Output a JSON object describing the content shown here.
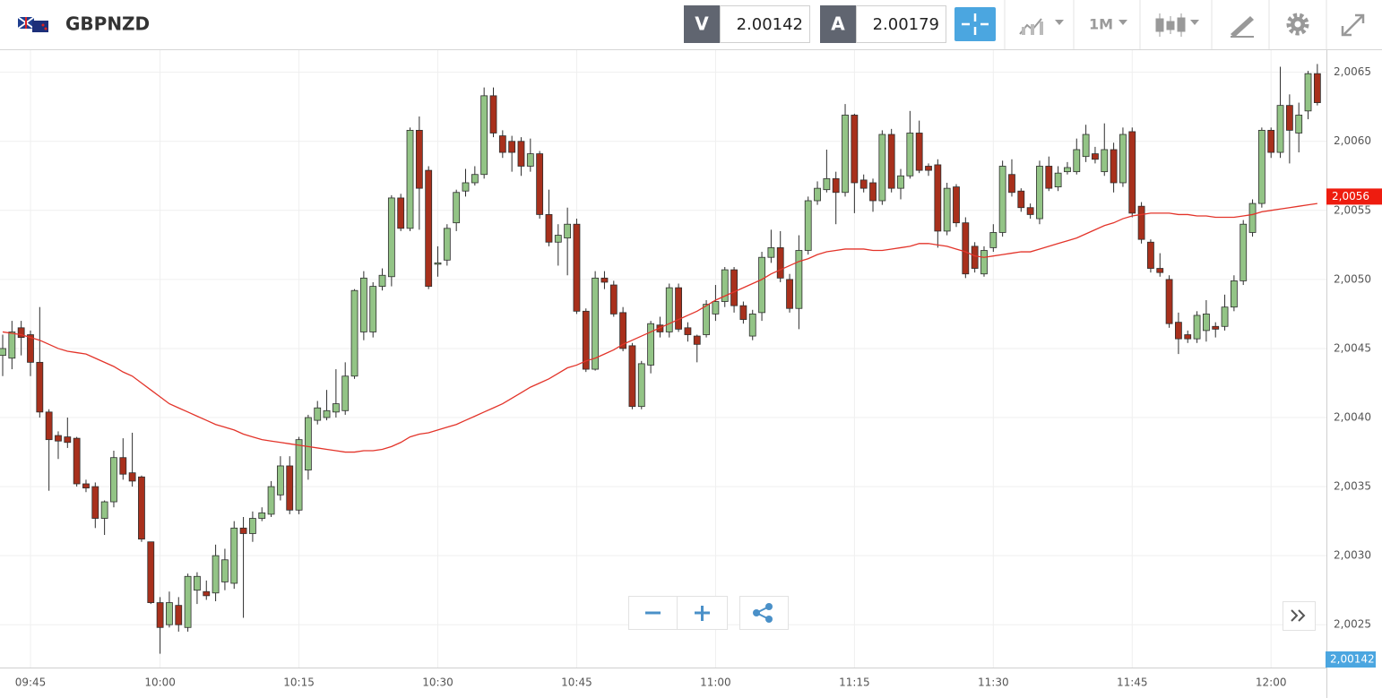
{
  "header": {
    "symbol": "GBPNZD",
    "bid_tag": "V",
    "bid": "2.00142",
    "ask_tag": "A",
    "ask": "2.00179",
    "timeframe": "1M"
  },
  "chart_data": {
    "type": "candlestick",
    "categories": [
      null,
      null,
      null,
      "09:45",
      null,
      null,
      null,
      null,
      null,
      null,
      null,
      null,
      null,
      null,
      null,
      null,
      null,
      "10:00",
      null,
      null,
      null,
      null,
      null,
      null,
      null,
      null,
      null,
      null,
      null,
      null,
      null,
      null,
      "10:15",
      null,
      null,
      null,
      null,
      null,
      null,
      null,
      null,
      null,
      null,
      null,
      null,
      null,
      null,
      "10:30",
      null,
      null,
      null,
      null,
      null,
      null,
      null,
      null,
      null,
      null,
      null,
      null,
      null,
      null,
      "10:45",
      null,
      null,
      null,
      null,
      null,
      null,
      null,
      null,
      null,
      null,
      null,
      null,
      null,
      null,
      "11:00",
      null,
      null,
      null,
      null,
      null,
      null,
      null,
      null,
      null,
      null,
      null,
      null,
      null,
      null,
      "11:15",
      null,
      null,
      null,
      null,
      null,
      null,
      null,
      null,
      null,
      null,
      null,
      null,
      null,
      null,
      "11:30",
      null,
      null,
      null,
      null,
      null,
      null,
      null,
      null,
      null,
      null,
      null,
      null,
      null,
      null,
      "11:45",
      null,
      null,
      null,
      null,
      null,
      null,
      null,
      null,
      null,
      null,
      null,
      null,
      null,
      null,
      "12:00",
      null,
      null,
      null,
      null,
      null
    ],
    "candles": {
      "up_color": "#93c486",
      "down_color": "#a8301c",
      "edge_color": "#2d2d2d",
      "open": [
        2.00445,
        2.00443,
        2.00465,
        2.0046,
        2.0044,
        2.00404,
        2.00387,
        2.00386,
        2.00385,
        2.00352,
        2.0035,
        2.00327,
        2.00339,
        2.00371,
        2.0036,
        2.00357,
        2.0031,
        2.00266,
        2.0025,
        2.00264,
        2.00248,
        2.00275,
        2.00274,
        2.00273,
        2.00281,
        2.0028,
        2.0032,
        2.00316,
        2.00327,
        2.0033,
        2.00344,
        2.00365,
        2.00333,
        2.00362,
        2.00398,
        2.004,
        2.00404,
        2.00405,
        2.0043,
        2.00462,
        2.00462,
        2.00495,
        2.00502,
        2.00559,
        2.00537,
        2.00608,
        2.00579,
        2.00511,
        2.00514,
        2.00541,
        2.00564,
        2.0057,
        2.00576,
        2.00633,
        2.00604,
        2.006,
        2.006,
        2.00582,
        2.00591,
        2.00547,
        2.00527,
        2.0053,
        2.0054,
        2.00477,
        2.00435,
        2.00501,
        2.00496,
        2.00476,
        2.00452,
        2.00408,
        2.00438,
        2.00467,
        2.00462,
        2.00494,
        2.00465,
        2.00459,
        2.0046,
        2.00475,
        2.00484,
        2.00507,
        2.00481,
        2.00459,
        2.00476,
        2.00516,
        2.00523,
        2.005,
        2.00479,
        2.00521,
        2.00557,
        2.00565,
        2.00573,
        2.00563,
        2.00619,
        2.00572,
        2.0057,
        2.00557,
        2.00605,
        2.00566,
        2.00575,
        2.00606,
        2.00582,
        2.00583,
        2.00535,
        2.00567,
        2.00541,
        2.00524,
        2.00504,
        2.00523,
        2.00534,
        2.00576,
        2.00564,
        2.00552,
        2.00544,
        2.00582,
        2.00567,
        2.00578,
        2.00578,
        2.00589,
        2.00591,
        2.00578,
        2.00594,
        2.0057,
        2.00607,
        2.00553,
        2.00527,
        2.00508,
        2.005,
        2.00469,
        2.0046,
        2.00457,
        2.00463,
        2.00466,
        2.00466,
        2.0048,
        2.00499,
        2.00534,
        2.00555,
        2.00608,
        2.00592,
        2.00626,
        2.00606,
        2.00622,
        2.00649
      ],
      "high": [
        2.0046,
        2.0047,
        2.0047,
        2.00463,
        2.0048,
        2.00406,
        2.0039,
        2.004,
        2.00386,
        2.00355,
        2.00353,
        2.0034,
        2.00376,
        2.00385,
        2.00389,
        2.00358,
        2.0031,
        2.0027,
        2.00274,
        2.0027,
        2.00287,
        2.00288,
        2.00282,
        2.00308,
        2.00305,
        2.00325,
        2.00328,
        2.00332,
        2.00335,
        2.00354,
        2.00372,
        2.00372,
        2.00386,
        2.00402,
        2.00412,
        2.0042,
        2.00435,
        2.0044,
        2.00493,
        2.00506,
        2.00498,
        2.00508,
        2.00561,
        2.00562,
        2.0061,
        2.00618,
        2.00582,
        2.00524,
        2.0054,
        2.00565,
        2.0058,
        2.00582,
        2.00639,
        2.00639,
        2.00608,
        2.00604,
        2.00603,
        2.00602,
        2.00593,
        2.00565,
        2.0054,
        2.00552,
        2.00544,
        2.00479,
        2.00506,
        2.00506,
        2.00499,
        2.0048,
        2.00454,
        2.00441,
        2.0047,
        2.00473,
        2.00497,
        2.00497,
        2.00469,
        2.0046,
        2.00485,
        2.00496,
        2.00509,
        2.00509,
        2.00484,
        2.00478,
        2.0052,
        2.00536,
        2.00535,
        2.00504,
        2.00532,
        2.0056,
        2.00571,
        2.00594,
        2.00578,
        2.00627,
        2.0062,
        2.00576,
        2.00573,
        2.00608,
        2.00609,
        2.0058,
        2.00622,
        2.00615,
        2.00584,
        2.00587,
        2.0057,
        2.00569,
        2.00545,
        2.00527,
        2.00524,
        2.0054,
        2.00586,
        2.00587,
        2.00566,
        2.00555,
        2.00586,
        2.00589,
        2.00582,
        2.00585,
        2.00602,
        2.00612,
        2.00596,
        2.00613,
        2.00599,
        2.0061,
        2.0061,
        2.00556,
        2.00529,
        2.00519,
        2.00503,
        2.00476,
        2.00463,
        2.00477,
        2.00485,
        2.00469,
        2.00489,
        2.00503,
        2.00543,
        2.00558,
        2.0061,
        2.0061,
        2.00654,
        2.00634,
        2.00628,
        2.00651,
        2.00656
      ],
      "low": [
        2.0043,
        2.00435,
        2.00445,
        2.0043,
        2.004,
        2.00347,
        2.0037,
        2.00378,
        2.0035,
        2.00346,
        2.0032,
        2.00315,
        2.00335,
        2.00355,
        2.0035,
        2.0031,
        2.00265,
        2.00229,
        2.00248,
        2.00245,
        2.00245,
        2.00265,
        2.00268,
        2.00267,
        2.00275,
        2.00276,
        2.00255,
        2.0031,
        2.00325,
        2.00328,
        2.0034,
        2.0033,
        2.0033,
        2.00355,
        2.00395,
        2.00398,
        2.004,
        2.00402,
        2.00428,
        2.00456,
        2.00458,
        2.00492,
        2.00495,
        2.00535,
        2.00535,
        2.00536,
        2.00493,
        2.00502,
        2.0051,
        2.00535,
        2.0056,
        2.00568,
        2.00573,
        2.00603,
        2.00588,
        2.00578,
        2.00575,
        2.00578,
        2.00544,
        2.00524,
        2.0051,
        2.00503,
        2.00475,
        2.00433,
        2.00434,
        2.00493,
        2.00473,
        2.00448,
        2.00406,
        2.00406,
        2.00432,
        2.00458,
        2.00458,
        2.00462,
        2.00455,
        2.0044,
        2.00458,
        2.0047,
        2.0048,
        2.00476,
        2.00468,
        2.00456,
        2.0047,
        2.00512,
        2.00498,
        2.00476,
        2.00464,
        2.00518,
        2.00554,
        2.00563,
        2.0054,
        2.0056,
        2.00548,
        2.00563,
        2.00549,
        2.00554,
        2.00563,
        2.00558,
        2.00573,
        2.00577,
        2.00575,
        2.00523,
        2.00532,
        2.00538,
        2.00501,
        2.00505,
        2.00502,
        2.0052,
        2.00531,
        2.0056,
        2.00549,
        2.00544,
        2.0054,
        2.00564,
        2.00564,
        2.00576,
        2.00576,
        2.00585,
        2.00584,
        2.00575,
        2.00563,
        2.00567,
        2.00545,
        2.00526,
        2.00505,
        2.00502,
        2.00465,
        2.00446,
        2.00454,
        2.00454,
        2.00455,
        2.00458,
        2.00463,
        2.00477,
        2.00496,
        2.00531,
        2.00552,
        2.00588,
        2.00588,
        2.00584,
        2.00592,
        2.00616,
        2.00626
      ],
      "close": [
        2.0045,
        2.00462,
        2.00458,
        2.0044,
        2.00404,
        2.00384,
        2.00383,
        2.00382,
        2.00352,
        2.00349,
        2.00327,
        2.00339,
        2.00371,
        2.00359,
        2.00354,
        2.00312,
        2.00266,
        2.00248,
        2.00266,
        2.0025,
        2.00285,
        2.00285,
        2.00271,
        2.003,
        2.00297,
        2.0032,
        2.00316,
        2.00327,
        2.00331,
        2.0035,
        2.00365,
        2.00333,
        2.00384,
        2.004,
        2.00407,
        2.00405,
        2.0041,
        2.0043,
        2.00492,
        2.00501,
        2.00495,
        2.00503,
        2.00559,
        2.00537,
        2.00608,
        2.00566,
        2.00495,
        2.00512,
        2.00537,
        2.00563,
        2.0057,
        2.00576,
        2.00633,
        2.00606,
        2.00592,
        2.00592,
        2.00582,
        2.00591,
        2.00547,
        2.00527,
        2.00532,
        2.0054,
        2.00477,
        2.00435,
        2.00501,
        2.00498,
        2.00475,
        2.0045,
        2.00408,
        2.00439,
        2.00468,
        2.00462,
        2.00494,
        2.00464,
        2.0046,
        2.00453,
        2.00482,
        2.00484,
        2.00507,
        2.00481,
        2.00471,
        2.00475,
        2.00516,
        2.00523,
        2.00501,
        2.00479,
        2.00521,
        2.00557,
        2.00566,
        2.00573,
        2.00563,
        2.00619,
        2.0057,
        2.00566,
        2.00557,
        2.00605,
        2.00566,
        2.00575,
        2.00606,
        2.00579,
        2.00579,
        2.00535,
        2.00566,
        2.00541,
        2.00504,
        2.00508,
        2.00521,
        2.00534,
        2.00582,
        2.00563,
        2.00552,
        2.00547,
        2.00582,
        2.00566,
        2.00577,
        2.00581,
        2.00594,
        2.00605,
        2.00587,
        2.00594,
        2.0057,
        2.00605,
        2.00548,
        2.00529,
        2.00508,
        2.00505,
        2.00468,
        2.00457,
        2.00457,
        2.00474,
        2.00475,
        2.00464,
        2.0048,
        2.00499,
        2.0054,
        2.00555,
        2.00608,
        2.00592,
        2.00626,
        2.00608,
        2.00619,
        2.00649,
        2.00628
      ]
    },
    "moving_average": {
      "color": "#e3342a",
      "values": [
        2.00462,
        2.00461,
        2.0046,
        2.00458,
        2.00456,
        2.00453,
        2.0045,
        2.00448,
        2.00447,
        2.00446,
        2.00443,
        2.0044,
        2.00437,
        2.00433,
        2.0043,
        2.00425,
        2.0042,
        2.00415,
        2.0041,
        2.00407,
        2.00404,
        2.00401,
        2.00398,
        2.00395,
        2.00393,
        2.00391,
        2.00388,
        2.00386,
        2.00384,
        2.00383,
        2.00382,
        2.00381,
        2.0038,
        2.00379,
        2.00378,
        2.00377,
        2.00376,
        2.00375,
        2.00375,
        2.00376,
        2.00376,
        2.00377,
        2.00379,
        2.00382,
        2.00386,
        2.00388,
        2.00389,
        2.00391,
        2.00393,
        2.00395,
        2.00398,
        2.00401,
        2.00404,
        2.00407,
        2.0041,
        2.00414,
        2.00418,
        2.00422,
        2.00425,
        2.00428,
        2.00432,
        2.00436,
        2.00438,
        2.00441,
        2.00443,
        2.00446,
        2.00449,
        2.00453,
        2.00456,
        2.00459,
        2.00462,
        2.00465,
        2.00468,
        2.00471,
        2.00474,
        2.00477,
        2.00481,
        2.00485,
        2.00488,
        2.00491,
        2.00494,
        2.00497,
        2.005,
        2.00504,
        2.00507,
        2.0051,
        2.00513,
        2.00515,
        2.00518,
        2.0052,
        2.00521,
        2.00522,
        2.00522,
        2.00522,
        2.00521,
        2.00521,
        2.00522,
        2.00523,
        2.00524,
        2.00526,
        2.00526,
        2.00525,
        2.00524,
        2.00522,
        2.0052,
        2.00517,
        2.00516,
        2.00517,
        2.00518,
        2.00519,
        2.0052,
        2.0052,
        2.00522,
        2.00524,
        2.00526,
        2.00528,
        2.0053,
        2.00533,
        2.00536,
        2.00539,
        2.00541,
        2.00544,
        2.00546,
        2.00547,
        2.00548,
        2.00548,
        2.00548,
        2.00547,
        2.00547,
        2.00546,
        2.00546,
        2.00545,
        2.00545,
        2.00545,
        2.00546,
        2.00547,
        2.00549,
        2.0055,
        2.00551,
        2.00552,
        2.00553,
        2.00554,
        2.00555
      ]
    },
    "ma_label": {
      "value": 2.0056,
      "label": "2,0056"
    },
    "bid_label": {
      "value": 2.00142,
      "label": "2,00142"
    },
    "ylim": [
      2.00219,
      2.00666
    ],
    "yticks": [
      {
        "value": 2.0025,
        "label": "2,0025"
      },
      {
        "value": 2.003,
        "label": "2,0030"
      },
      {
        "value": 2.0035,
        "label": "2,0035"
      },
      {
        "value": 2.004,
        "label": "2,0040"
      },
      {
        "value": 2.0045,
        "label": "2,0045"
      },
      {
        "value": 2.005,
        "label": "2,0050"
      },
      {
        "value": 2.0055,
        "label": "2,0055"
      },
      {
        "value": 2.006,
        "label": "2,0060"
      },
      {
        "value": 2.0065,
        "label": "2,0065"
      }
    ],
    "grid": true
  }
}
